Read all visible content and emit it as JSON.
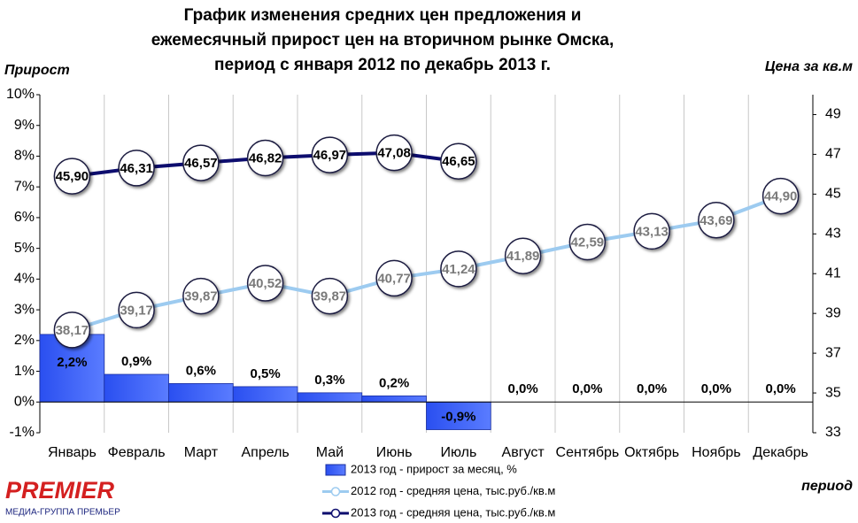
{
  "chart_data": {
    "type": "bar-line",
    "title": [
      "График изменения средних цен предложения и",
      "ежемесячный прирост цен на вторичном рынке  Омска,",
      "период с января 2012 по декабрь 2013 г."
    ],
    "y_label": "Прирост",
    "y2_label": "Цена за кв.м",
    "x_label": "период",
    "categories": [
      "Январь",
      "Февраль",
      "Март",
      "Апрель",
      "Май",
      "Июнь",
      "Июль",
      "Август",
      "Сентябрь",
      "Октябрь",
      "Ноябрь",
      "Декабрь"
    ],
    "ylim": [
      -1,
      10
    ],
    "yticks": [
      {
        "value": -1,
        "label": "-1%"
      },
      {
        "value": 0,
        "label": "0%"
      },
      {
        "value": 1,
        "label": "1%"
      },
      {
        "value": 2,
        "label": "2%"
      },
      {
        "value": 3,
        "label": "3%"
      },
      {
        "value": 4,
        "label": "4%"
      },
      {
        "value": 5,
        "label": "5%"
      },
      {
        "value": 6,
        "label": "6%"
      },
      {
        "value": 7,
        "label": "7%"
      },
      {
        "value": 8,
        "label": "8%"
      },
      {
        "value": 9,
        "label": "9%"
      },
      {
        "value": 10,
        "label": "10%"
      }
    ],
    "y2lim": [
      33,
      50
    ],
    "y2ticks": [
      33,
      35,
      37,
      39,
      41,
      43,
      45,
      47,
      49
    ],
    "grid": "vertical",
    "series": [
      {
        "name": "2013 год - прирост за месяц, %",
        "type": "bar",
        "color": "#3a5ff5",
        "values": [
          2.2,
          0.9,
          0.6,
          0.5,
          0.3,
          0.2,
          -0.9,
          0,
          0,
          0,
          0,
          0
        ],
        "value_labels": [
          "2,2%",
          "0,9%",
          "0,6%",
          "0,5%",
          "0,3%",
          "0,2%",
          "-0,9%",
          "0,0%",
          "0,0%",
          "0,0%",
          "0,0%",
          "0,0%"
        ]
      },
      {
        "name": "2012 год - средняя цена, тыс.руб./кв.м",
        "type": "line",
        "axis": "y2",
        "color": "#9dcbf0",
        "label_color": "#7a7a7a",
        "values": [
          38.17,
          39.17,
          39.87,
          40.52,
          39.87,
          40.77,
          41.24,
          41.89,
          42.59,
          43.13,
          43.69,
          44.9
        ],
        "value_labels": [
          "38,17",
          "39,17",
          "39,87",
          "40,52",
          "39,87",
          "40,77",
          "41,24",
          "41,89",
          "42,59",
          "43,13",
          "43,69",
          "44,90"
        ]
      },
      {
        "name": "2013 год - средняя цена, тыс.руб./кв.м",
        "type": "line",
        "axis": "y2",
        "color": "#0d0d6e",
        "label_color": "#000000",
        "values": [
          45.9,
          46.31,
          46.57,
          46.82,
          46.97,
          47.08,
          46.65,
          null,
          null,
          null,
          null,
          null
        ],
        "value_labels": [
          "45,90",
          "46,31",
          "46,57",
          "46,82",
          "46,97",
          "47,08",
          "46,65",
          null,
          null,
          null,
          null,
          null
        ]
      }
    ]
  },
  "logo": {
    "name": "PREMIER",
    "subtitle": "МЕДИА-ГРУППА ПРЕМЬЕР"
  }
}
